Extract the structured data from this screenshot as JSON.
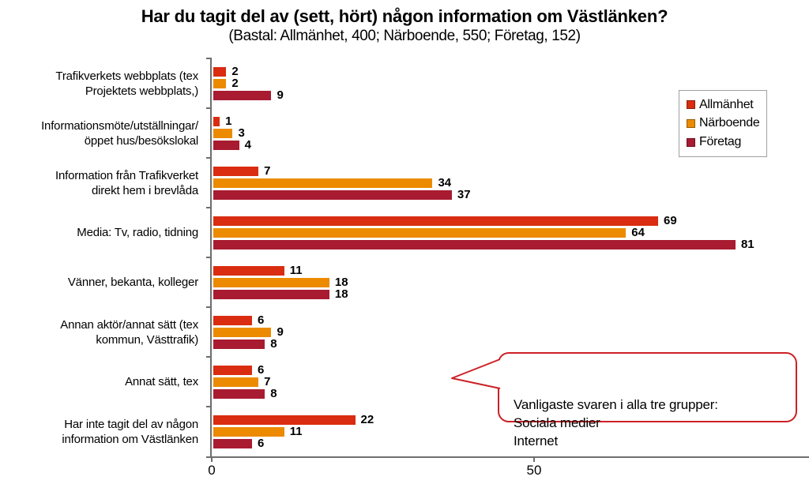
{
  "title": "Har du tagit del av (sett, hört) någon information om Västlänken?",
  "subtitle": "(Bastal: Allmänhet, 400; Närboende, 550; Företag, 152)",
  "chart_data": {
    "type": "bar",
    "orientation": "horizontal",
    "title": "Har du tagit del av (sett, hört) någon information om Västlänken?",
    "subtitle": "(Bastal: Allmänhet, 400; Närboende, 550; Företag, 152)",
    "categories": [
      "Trafikverkets webbplats (tex\nProjektets webbplats,)",
      "Informationsmöte/utställningar/\nöppet hus/besökslokal",
      "Information från Trafikverket\ndirekt hem i brevlåda",
      "Media: Tv, radio, tidning",
      "Vänner, bekanta, kolleger",
      "Annan aktör/annat sätt (tex\nkommun, Västtrafik)",
      "Annat sätt, tex",
      "Har inte tagit del av någon\ninformation om Västlänken"
    ],
    "series": [
      {
        "name": "Allmänhet",
        "color": "#d92c10",
        "values": [
          2,
          1,
          7,
          69,
          11,
          6,
          6,
          22
        ]
      },
      {
        "name": "Närboende",
        "color": "#ec8a00",
        "values": [
          2,
          3,
          34,
          64,
          18,
          9,
          7,
          11
        ]
      },
      {
        "name": "Företag",
        "color": "#a81b31",
        "values": [
          9,
          4,
          37,
          81,
          18,
          8,
          8,
          6
        ]
      }
    ],
    "xlabel": "",
    "ylabel": "",
    "xlim": [
      0,
      92
    ],
    "x_ticks": [
      0,
      50
    ],
    "grid": false,
    "value_labels": true,
    "legend_position": "top-right"
  },
  "callout": {
    "text": "Vanligaste svaren i alla tre grupper:\nSociala medier\nInternet"
  },
  "colors": {
    "axis": "#6e6e6e",
    "callout_border": "#cd2026",
    "legend_border": "#a0a0a0",
    "background": "#ffffff"
  }
}
